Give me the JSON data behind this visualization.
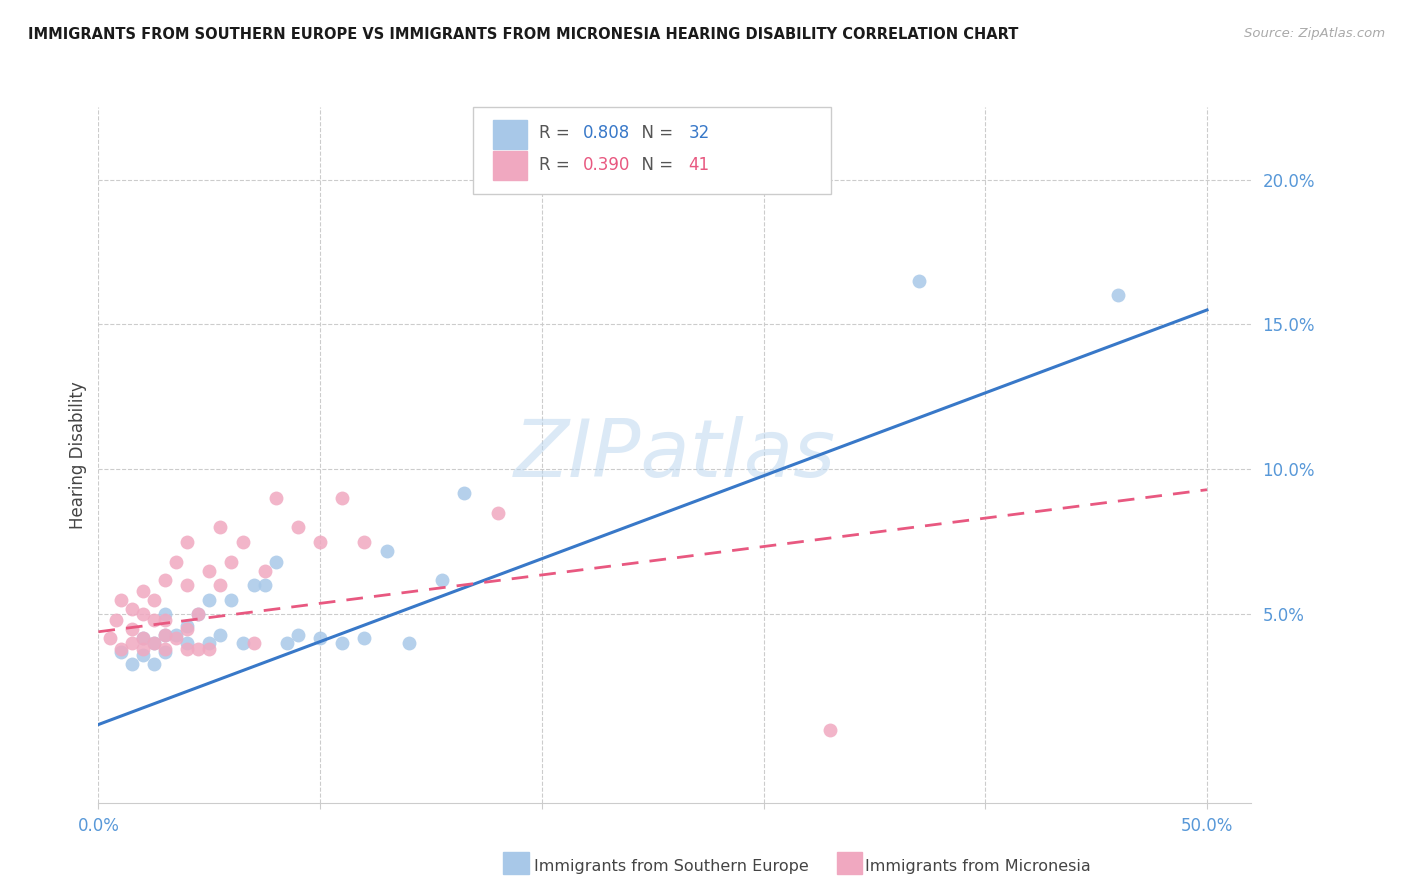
{
  "title": "IMMIGRANTS FROM SOUTHERN EUROPE VS IMMIGRANTS FROM MICRONESIA HEARING DISABILITY CORRELATION CHART",
  "source": "Source: ZipAtlas.com",
  "ylabel": "Hearing Disability",
  "ytick_labels": [
    "5.0%",
    "10.0%",
    "15.0%",
    "20.0%"
  ],
  "ytick_values": [
    0.05,
    0.1,
    0.15,
    0.2
  ],
  "xtick_values": [
    0.0,
    0.1,
    0.2,
    0.3,
    0.4,
    0.5
  ],
  "xlim": [
    0.0,
    0.52
  ],
  "ylim": [
    -0.015,
    0.225
  ],
  "legend_label1": "Immigrants from Southern Europe",
  "legend_label2": "Immigrants from Micronesia",
  "R1": "0.808",
  "N1": "32",
  "R2": "0.390",
  "N2": "41",
  "color_blue": "#a8c8e8",
  "color_blue_line": "#3878c8",
  "color_pink": "#f0a8c0",
  "color_pink_line": "#e85880",
  "color_axis_labels": "#5898d8",
  "background": "#ffffff",
  "blue_scatter_x": [
    0.01,
    0.015,
    0.02,
    0.02,
    0.025,
    0.025,
    0.03,
    0.03,
    0.03,
    0.035,
    0.04,
    0.04,
    0.045,
    0.05,
    0.05,
    0.055,
    0.06,
    0.065,
    0.07,
    0.075,
    0.08,
    0.085,
    0.09,
    0.1,
    0.11,
    0.12,
    0.13,
    0.14,
    0.155,
    0.165,
    0.37,
    0.46
  ],
  "blue_scatter_y": [
    0.037,
    0.033,
    0.036,
    0.042,
    0.033,
    0.04,
    0.037,
    0.043,
    0.05,
    0.043,
    0.04,
    0.046,
    0.05,
    0.04,
    0.055,
    0.043,
    0.055,
    0.04,
    0.06,
    0.06,
    0.068,
    0.04,
    0.043,
    0.042,
    0.04,
    0.042,
    0.072,
    0.04,
    0.062,
    0.092,
    0.165,
    0.16
  ],
  "pink_scatter_x": [
    0.005,
    0.008,
    0.01,
    0.01,
    0.015,
    0.015,
    0.015,
    0.02,
    0.02,
    0.02,
    0.02,
    0.025,
    0.025,
    0.025,
    0.03,
    0.03,
    0.03,
    0.03,
    0.035,
    0.035,
    0.04,
    0.04,
    0.04,
    0.04,
    0.045,
    0.045,
    0.05,
    0.05,
    0.055,
    0.055,
    0.06,
    0.065,
    0.07,
    0.075,
    0.08,
    0.09,
    0.1,
    0.11,
    0.12,
    0.18,
    0.33
  ],
  "pink_scatter_y": [
    0.042,
    0.048,
    0.038,
    0.055,
    0.04,
    0.045,
    0.052,
    0.038,
    0.042,
    0.05,
    0.058,
    0.04,
    0.048,
    0.055,
    0.038,
    0.043,
    0.048,
    0.062,
    0.042,
    0.068,
    0.038,
    0.045,
    0.06,
    0.075,
    0.038,
    0.05,
    0.038,
    0.065,
    0.06,
    0.08,
    0.068,
    0.075,
    0.04,
    0.065,
    0.09,
    0.08,
    0.075,
    0.09,
    0.075,
    0.085,
    0.01
  ],
  "blue_line_x": [
    0.0,
    0.5
  ],
  "blue_line_y": [
    0.012,
    0.155
  ],
  "pink_line_x": [
    0.0,
    0.5
  ],
  "pink_line_y": [
    0.044,
    0.093
  ]
}
